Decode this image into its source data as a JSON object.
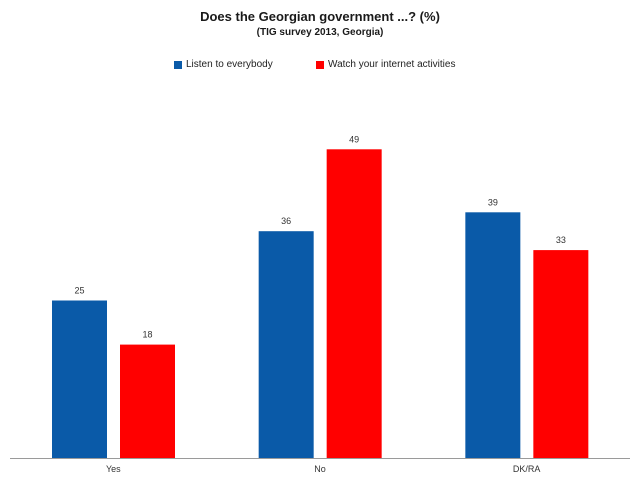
{
  "chart_data": {
    "type": "bar",
    "title": "Does the Georgian government ...? (%)",
    "subtitle": "(TIG survey 2013, Georgia)",
    "categories": [
      "Yes",
      "No",
      "DK/RA"
    ],
    "series": [
      {
        "name": "Listen to everybody",
        "color": "#0a5aa8",
        "values": [
          25,
          36,
          39
        ]
      },
      {
        "name": "Watch your internet activities",
        "color": "#ff0000",
        "values": [
          18,
          49,
          33
        ]
      }
    ],
    "ylim": [
      0,
      56
    ],
    "grid": false,
    "legend_position": "top-center",
    "data_labels": true
  }
}
